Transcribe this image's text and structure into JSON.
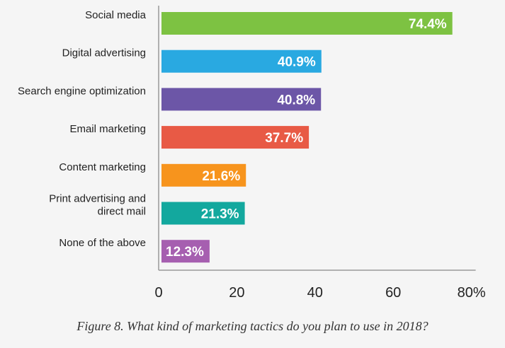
{
  "chart_data": {
    "type": "bar",
    "orientation": "horizontal",
    "categories": [
      [
        "Social media"
      ],
      [
        "Digital advertising"
      ],
      [
        "Search engine optimization"
      ],
      [
        "Email marketing"
      ],
      [
        "Content marketing"
      ],
      [
        "Print advertising and",
        "direct mail"
      ],
      [
        "None of the above"
      ]
    ],
    "values": [
      74.4,
      40.9,
      40.8,
      37.7,
      21.6,
      21.3,
      12.3
    ],
    "value_labels": [
      "74.4%",
      "40.9%",
      "40.8%",
      "37.7%",
      "21.6%",
      "21.3%",
      "12.3%"
    ],
    "colors": [
      "#7dc242",
      "#29a9e1",
      "#6c56a7",
      "#e85a45",
      "#f7941d",
      "#13a89e",
      "#a65fb0"
    ],
    "xlim": [
      0,
      80
    ],
    "xticks": [
      0,
      20,
      40,
      60,
      80
    ],
    "xtick_labels": [
      "0",
      "20",
      "40",
      "60",
      "80%"
    ],
    "grid": false,
    "legend": "none"
  },
  "caption": "Figure 8. What kind of marketing tactics do you plan to use in 2018?"
}
